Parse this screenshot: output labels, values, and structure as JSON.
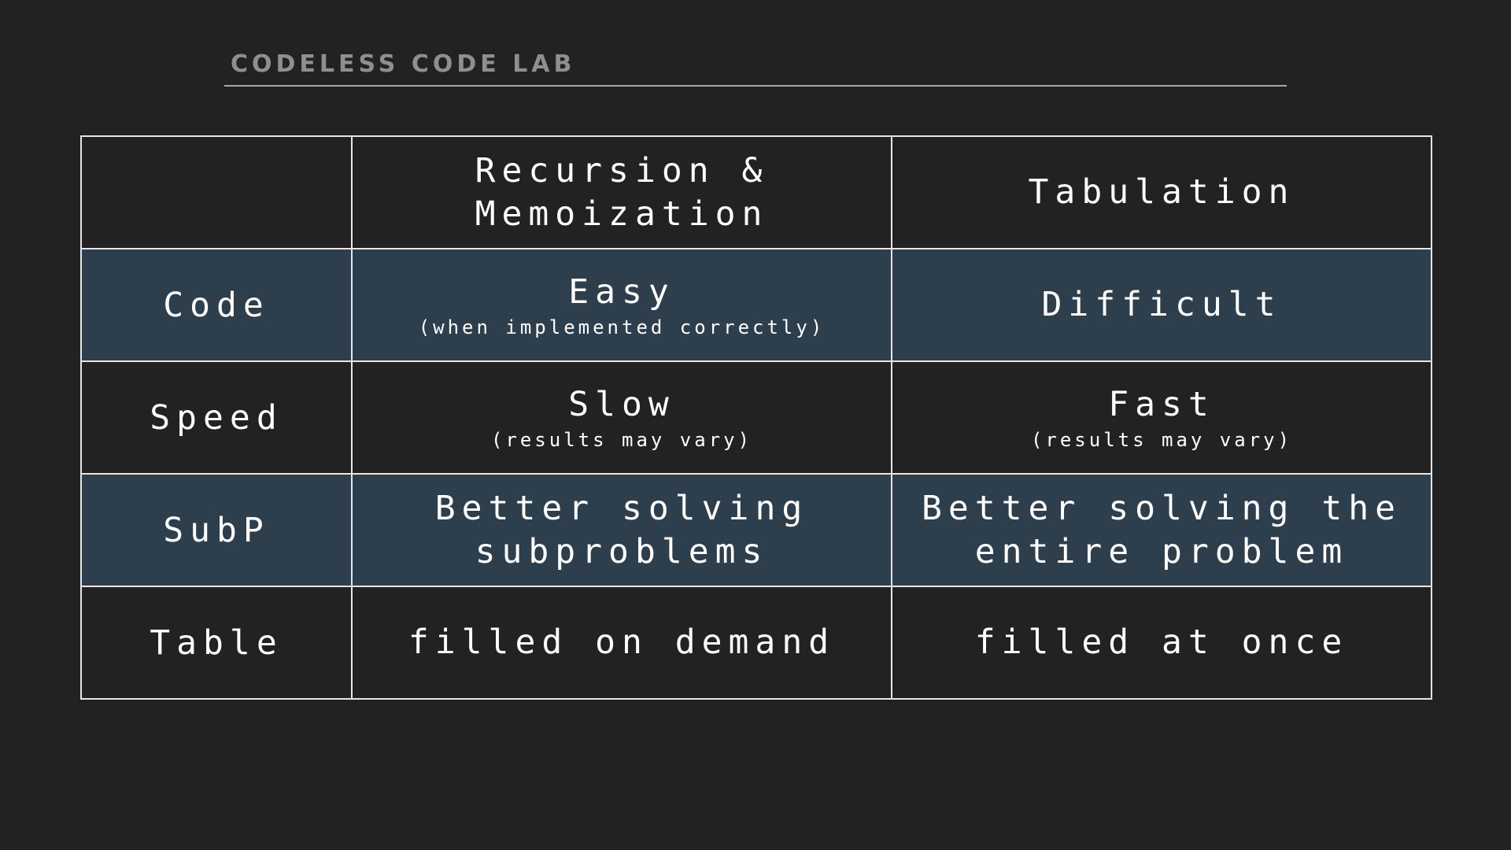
{
  "header": {
    "brand": "CODELESS CODE LAB"
  },
  "table": {
    "columns": [
      "",
      "Recursion & Memoization",
      "Tabulation"
    ],
    "rows": [
      {
        "label": "Code",
        "memo": {
          "main": "Easy",
          "note": "(when implemented correctly)"
        },
        "tab": {
          "main": "Difficult",
          "note": ""
        }
      },
      {
        "label": "Speed",
        "memo": {
          "main": "Slow",
          "note": "(results may vary)"
        },
        "tab": {
          "main": "Fast",
          "note": "(results may vary)"
        }
      },
      {
        "label": "SubP",
        "memo": {
          "main": "Better solving subproblems",
          "note": ""
        },
        "tab": {
          "main": "Better solving the entire problem",
          "note": ""
        }
      },
      {
        "label": "Table",
        "memo": {
          "main": "filled on demand",
          "note": ""
        },
        "tab": {
          "main": "filled at once",
          "note": ""
        }
      }
    ]
  },
  "colors": {
    "background": "#222222",
    "highlight_row": "#2d3e4d",
    "grid_line": "#e6e6e6",
    "brand_text": "#8f8f8f"
  }
}
